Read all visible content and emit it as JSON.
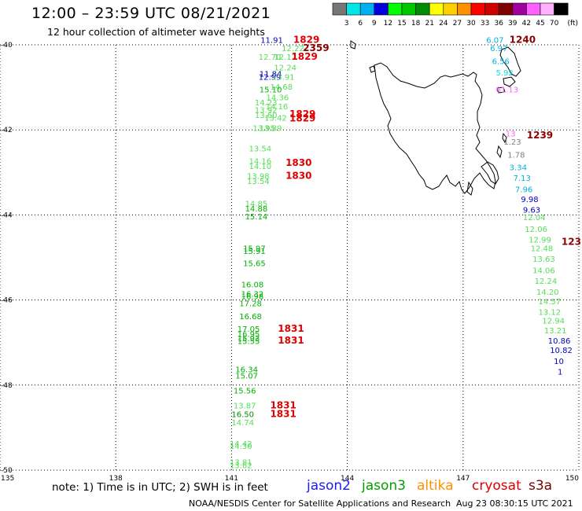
{
  "header": {
    "title": "12:00 – 23:59 UTC 08/21/2021",
    "subtitle": "12 hour collection of altimeter wave heights"
  },
  "colorbar": {
    "labels": [
      "3",
      "6",
      "9",
      "12",
      "15",
      "18",
      "21",
      "24",
      "27",
      "30",
      "33",
      "36",
      "39",
      "42",
      "45",
      "70"
    ],
    "unit": "(ft)",
    "colors": [
      "#777777",
      "#00e5e5",
      "#00b0f0",
      "#0000e0",
      "#00ff00",
      "#00c800",
      "#008c00",
      "#ffff00",
      "#ffd000",
      "#ff9000",
      "#ff0000",
      "#d00000",
      "#800000",
      "#a000a0",
      "#ff60ff",
      "#ffb0ff",
      "#000000"
    ]
  },
  "axes": {
    "lat_labels": [
      "-40",
      "-42",
      "-44",
      "-46",
      "-48",
      "-50"
    ],
    "lon_labels": [
      "135",
      "138",
      "141",
      "144",
      "147",
      "150"
    ]
  },
  "footer": {
    "note": "note: 1) Time is in UTC; 2) SWH is in feet",
    "satellites": [
      {
        "name": "jason2",
        "color": "#1a1aff"
      },
      {
        "name": "jason3",
        "color": "#00a000"
      },
      {
        "name": "altika",
        "color": "#ff9000"
      },
      {
        "name": "cryosat",
        "color": "#e00000"
      },
      {
        "name": "s3a",
        "color": "#7a0000"
      }
    ],
    "credit": "NOAA/NESDIS Center for Satellite Applications and Research",
    "generated": "Aug 23 08:30:15 UTC 2021"
  },
  "colors": {
    "swh_light_green": "#55dd55",
    "swh_green": "#00b000",
    "swh_dark_green": "#009000",
    "swh_blue": "#0000c0",
    "swh_cyan": "#00b0e0",
    "swh_gray": "#808080",
    "swh_pink": "#ff60ff",
    "time_red": "#e00000",
    "time_dark_red": "#8b0000"
  },
  "track_west": {
    "swh": [
      {
        "v": "11.91",
        "lon": 141.75,
        "lat": -39.95,
        "c": "#0000c0"
      },
      {
        "v": "12.22",
        "lon": 142.3,
        "lat": -40.15,
        "c": "#55dd55"
      },
      {
        "v": "12.70",
        "lon": 141.7,
        "lat": -40.35,
        "c": "#55dd55"
      },
      {
        "v": "12.12",
        "lon": 142.1,
        "lat": -40.35,
        "c": "#55dd55"
      },
      {
        "v": "12.24",
        "lon": 142.1,
        "lat": -40.6,
        "c": "#55dd55"
      },
      {
        "v": "11.84",
        "lon": 141.72,
        "lat": -40.75,
        "c": "#0000c0"
      },
      {
        "v": "12.99",
        "lon": 141.7,
        "lat": -40.82,
        "c": "#0000c0"
      },
      {
        "v": "13.91",
        "lon": 142.05,
        "lat": -40.82,
        "c": "#55dd55"
      },
      {
        "v": "14.68",
        "lon": 142.0,
        "lat": -41.05,
        "c": "#55dd55"
      },
      {
        "v": "15.10",
        "lon": 141.72,
        "lat": -41.12,
        "c": "#00b000"
      },
      {
        "v": "14.36",
        "lon": 141.9,
        "lat": -41.3,
        "c": "#55dd55"
      },
      {
        "v": "14.23",
        "lon": 141.6,
        "lat": -41.42,
        "c": "#55dd55"
      },
      {
        "v": "14.16",
        "lon": 141.88,
        "lat": -41.52,
        "c": "#55dd55"
      },
      {
        "v": "13.92",
        "lon": 141.6,
        "lat": -41.6,
        "c": "#55dd55"
      },
      {
        "v": "13.60",
        "lon": 141.6,
        "lat": -41.72,
        "c": "#55dd55"
      },
      {
        "v": "13.42",
        "lon": 141.85,
        "lat": -41.78,
        "c": "#55dd55"
      },
      {
        "v": "13.95",
        "lon": 141.55,
        "lat": -42.02,
        "c": "#55dd55"
      },
      {
        "v": "13.89",
        "lon": 141.72,
        "lat": -42.02,
        "c": "#55dd55"
      },
      {
        "v": "13.54",
        "lon": 141.45,
        "lat": -42.5,
        "c": "#55dd55"
      },
      {
        "v": "14.16",
        "lon": 141.45,
        "lat": -42.8,
        "c": "#55dd55"
      },
      {
        "v": "14.10",
        "lon": 141.45,
        "lat": -42.92,
        "c": "#55dd55"
      },
      {
        "v": "13.98",
        "lon": 141.4,
        "lat": -43.15,
        "c": "#55dd55"
      },
      {
        "v": "13.54",
        "lon": 141.4,
        "lat": -43.27,
        "c": "#55dd55"
      },
      {
        "v": "14.85",
        "lon": 141.35,
        "lat": -43.8,
        "c": "#55dd55"
      },
      {
        "v": "14.88",
        "lon": 141.35,
        "lat": -43.92,
        "c": "#00b000"
      },
      {
        "v": "15.14",
        "lon": 141.35,
        "lat": -44.1,
        "c": "#00b000"
      },
      {
        "v": "15.97",
        "lon": 141.3,
        "lat": -44.85,
        "c": "#00b000"
      },
      {
        "v": "15.91",
        "lon": 141.3,
        "lat": -44.92,
        "c": "#00b000"
      },
      {
        "v": "15.65",
        "lon": 141.3,
        "lat": -45.2,
        "c": "#00b000"
      },
      {
        "v": "16.08",
        "lon": 141.25,
        "lat": -45.7,
        "c": "#00b000"
      },
      {
        "v": "16.32",
        "lon": 141.25,
        "lat": -45.92,
        "c": "#00b000"
      },
      {
        "v": "16.98",
        "lon": 141.25,
        "lat": -45.98,
        "c": "#00b000"
      },
      {
        "v": "17.28",
        "lon": 141.2,
        "lat": -46.15,
        "c": "#00b000"
      },
      {
        "v": "16.68",
        "lon": 141.2,
        "lat": -46.45,
        "c": "#00b000"
      },
      {
        "v": "17.05",
        "lon": 141.15,
        "lat": -46.75,
        "c": "#00b000"
      },
      {
        "v": "16.95",
        "lon": 141.15,
        "lat": -46.87,
        "c": "#00b000"
      },
      {
        "v": "15.93",
        "lon": 141.15,
        "lat": -46.97,
        "c": "#00b000"
      },
      {
        "v": "15.55",
        "lon": 141.15,
        "lat": -47.03,
        "c": "#00b000"
      },
      {
        "v": "16.34",
        "lon": 141.1,
        "lat": -47.7,
        "c": "#00b000"
      },
      {
        "v": "15.07",
        "lon": 141.1,
        "lat": -47.85,
        "c": "#00b000"
      },
      {
        "v": "15.56",
        "lon": 141.05,
        "lat": -48.2,
        "c": "#00b000"
      },
      {
        "v": "13.87",
        "lon": 141.05,
        "lat": -48.55,
        "c": "#55dd55"
      },
      {
        "v": "16.50",
        "lon": 141.0,
        "lat": -48.75,
        "c": "#009000"
      },
      {
        "v": "14.74",
        "lon": 141.0,
        "lat": -48.95,
        "c": "#55dd55"
      },
      {
        "v": "14.42",
        "lon": 140.95,
        "lat": -49.45,
        "c": "#55dd55"
      },
      {
        "v": "14.30",
        "lon": 140.95,
        "lat": -49.5,
        "c": "#55dd55"
      },
      {
        "v": "13.81",
        "lon": 140.95,
        "lat": -49.88,
        "c": "#55dd55"
      },
      {
        "v": "13.62",
        "lon": 140.95,
        "lat": -49.95,
        "c": "#55dd55"
      }
    ],
    "times": [
      {
        "t": "1829",
        "lon": 142.6,
        "lat": -39.95,
        "c": "#e00000"
      },
      {
        "t": "2359",
        "lon": 142.85,
        "lat": -40.15,
        "c": "#8b0000"
      },
      {
        "t": "1829",
        "lon": 142.55,
        "lat": -40.35,
        "c": "#e00000"
      },
      {
        "t": "1829",
        "lon": 142.5,
        "lat": -41.7,
        "c": "#e00000"
      },
      {
        "t": "1829",
        "lon": 142.5,
        "lat": -41.8,
        "c": "#e00000"
      },
      {
        "t": "1830",
        "lon": 142.4,
        "lat": -42.85,
        "c": "#e00000"
      },
      {
        "t": "1830",
        "lon": 142.4,
        "lat": -43.15,
        "c": "#e00000"
      },
      {
        "t": "1831",
        "lon": 142.2,
        "lat": -46.75,
        "c": "#e00000"
      },
      {
        "t": "1831",
        "lon": 142.2,
        "lat": -47.02,
        "c": "#e00000"
      },
      {
        "t": "1831",
        "lon": 142.0,
        "lat": -48.55,
        "c": "#e00000"
      },
      {
        "t": "1831",
        "lon": 142.0,
        "lat": -48.75,
        "c": "#e00000"
      }
    ]
  },
  "track_east": {
    "swh": [
      {
        "v": "6.07",
        "lon": 147.6,
        "lat": -39.95,
        "c": "#00b0e0"
      },
      {
        "v": "6.97",
        "lon": 147.7,
        "lat": -40.15,
        "c": "#00b0e0"
      },
      {
        "v": "6.56",
        "lon": 147.75,
        "lat": -40.45,
        "c": "#00b0e0"
      },
      {
        "v": "5.92",
        "lon": 147.85,
        "lat": -40.72,
        "c": "#00e5e5"
      },
      {
        "v": "61.13",
        "lon": 147.85,
        "lat": -41.12,
        "c": "#ff60ff"
      },
      {
        "v": "13",
        "lon": 148.1,
        "lat": -42.15,
        "c": "#ff60ff"
      },
      {
        "v": "1.23",
        "lon": 148.05,
        "lat": -42.35,
        "c": "#808080"
      },
      {
        "v": "1.78",
        "lon": 148.15,
        "lat": -42.65,
        "c": "#808080"
      },
      {
        "v": "3.34",
        "lon": 148.2,
        "lat": -42.95,
        "c": "#00b0e0"
      },
      {
        "v": "7.13",
        "lon": 148.3,
        "lat": -43.2,
        "c": "#00b0e0"
      },
      {
        "v": "7.96",
        "lon": 148.35,
        "lat": -43.47,
        "c": "#00b0e0"
      },
      {
        "v": "9.98",
        "lon": 148.5,
        "lat": -43.7,
        "c": "#0000c0"
      },
      {
        "v": "9.63",
        "lon": 148.55,
        "lat": -43.95,
        "c": "#0000c0"
      },
      {
        "v": "12.04",
        "lon": 148.55,
        "lat": -44.12,
        "c": "#55dd55"
      },
      {
        "v": "12.06",
        "lon": 148.6,
        "lat": -44.4,
        "c": "#55dd55"
      },
      {
        "v": "12.99",
        "lon": 148.7,
        "lat": -44.65,
        "c": "#55dd55"
      },
      {
        "v": "12.48",
        "lon": 148.75,
        "lat": -44.85,
        "c": "#55dd55"
      },
      {
        "v": "13.63",
        "lon": 148.8,
        "lat": -45.1,
        "c": "#55dd55"
      },
      {
        "v": "14.06",
        "lon": 148.8,
        "lat": -45.37,
        "c": "#55dd55"
      },
      {
        "v": "12.24",
        "lon": 148.85,
        "lat": -45.62,
        "c": "#55dd55"
      },
      {
        "v": "14.20",
        "lon": 148.9,
        "lat": -45.88,
        "c": "#55dd55"
      },
      {
        "v": "14.57",
        "lon": 148.95,
        "lat": -46.1,
        "c": "#55dd55"
      },
      {
        "v": "13.12",
        "lon": 148.95,
        "lat": -46.35,
        "c": "#55dd55"
      },
      {
        "v": "12.94",
        "lon": 149.05,
        "lat": -46.55,
        "c": "#55dd55"
      },
      {
        "v": "13.21",
        "lon": 149.1,
        "lat": -46.78,
        "c": "#55dd55"
      },
      {
        "v": "10.86",
        "lon": 149.2,
        "lat": -47.02,
        "c": "#0000c0"
      },
      {
        "v": "10.82",
        "lon": 149.25,
        "lat": -47.25,
        "c": "#0000c0"
      },
      {
        "v": "10",
        "lon": 149.35,
        "lat": -47.5,
        "c": "#0000c0"
      },
      {
        "v": "1",
        "lon": 149.45,
        "lat": -47.75,
        "c": "#0000c0"
      }
    ],
    "times": [
      {
        "t": "1240",
        "lon": 148.2,
        "lat": -39.95,
        "c": "#8b0000"
      },
      {
        "t": "1239",
        "lon": 148.65,
        "lat": -42.2,
        "c": "#8b0000"
      },
      {
        "t": "123",
        "lon": 149.55,
        "lat": -44.7,
        "c": "#8b0000"
      }
    ]
  }
}
